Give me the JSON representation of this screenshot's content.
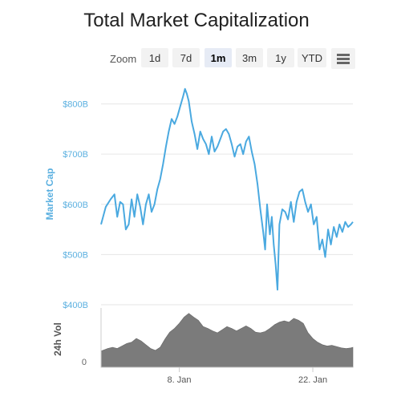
{
  "chart_data": {
    "type": "line",
    "title": "Total Market Capitalization",
    "ylabel": "Market Cap",
    "volume_label": "24h Vol",
    "volume_zero_label": "0",
    "y_ticks": [
      "$400B",
      "$500B",
      "$600B",
      "$700B",
      "$800B"
    ],
    "y_tick_values": [
      400,
      500,
      600,
      700,
      800
    ],
    "ylim": [
      400,
      860
    ],
    "x_ticks": [
      "8. Jan",
      "22. Jan"
    ],
    "x_tick_days": [
      8,
      22
    ],
    "xlim": [
      -0.2,
      26.2
    ],
    "grid": true,
    "legend": "none",
    "series": [
      {
        "x": [
          -0.2,
          0.3,
          0.8,
          1.2,
          1.5,
          1.8,
          2.1,
          2.4,
          2.7,
          3.0,
          3.3,
          3.6,
          3.9,
          4.2,
          4.5,
          4.8,
          5.1,
          5.4,
          5.7,
          6.0,
          6.3,
          6.6,
          6.9,
          7.2,
          7.5,
          7.8,
          8.1,
          8.4,
          8.6,
          8.8,
          9.0,
          9.3,
          9.6,
          9.9,
          10.2,
          10.5,
          10.8,
          11.1,
          11.4,
          11.7,
          12.0,
          12.3,
          12.6,
          12.9,
          13.2,
          13.5,
          13.8,
          14.1,
          14.4,
          14.7,
          15.0,
          15.3,
          15.6,
          15.9,
          16.2,
          16.5,
          16.8,
          17.0,
          17.2,
          17.5,
          17.7,
          17.9,
          18.1,
          18.3,
          18.5,
          18.8,
          19.1,
          19.4,
          19.7,
          20.0,
          20.3,
          20.6,
          20.9,
          21.2,
          21.5,
          21.8,
          22.1,
          22.4,
          22.7,
          23.0,
          23.3,
          23.6,
          23.9,
          24.2,
          24.5,
          24.8,
          25.1,
          25.4,
          25.7,
          26.0,
          26.2
        ],
        "y": [
          560,
          595,
          610,
          620,
          575,
          605,
          600,
          550,
          560,
          610,
          575,
          620,
          595,
          560,
          600,
          620,
          585,
          600,
          630,
          650,
          680,
          715,
          745,
          770,
          760,
          775,
          795,
          815,
          830,
          820,
          805,
          765,
          740,
          710,
          745,
          730,
          720,
          700,
          735,
          705,
          715,
          730,
          745,
          750,
          740,
          720,
          695,
          715,
          720,
          700,
          725,
          735,
          705,
          680,
          640,
          590,
          545,
          510,
          600,
          540,
          575,
          520,
          480,
          430,
          560,
          590,
          585,
          570,
          605,
          565,
          605,
          625,
          630,
          605,
          585,
          600,
          560,
          575,
          510,
          530,
          495,
          550,
          520,
          555,
          535,
          560,
          545,
          565,
          555,
          560,
          565
        ]
      }
    ],
    "volume": {
      "x": [
        -0.2,
        0.5,
        1.0,
        1.5,
        2.0,
        2.5,
        3.0,
        3.5,
        4.0,
        4.5,
        5.0,
        5.5,
        6.0,
        6.5,
        7.0,
        7.5,
        8.0,
        8.5,
        9.0,
        9.5,
        10.0,
        10.5,
        11.0,
        11.5,
        12.0,
        12.5,
        13.0,
        13.5,
        14.0,
        14.5,
        15.0,
        15.5,
        16.0,
        16.5,
        17.0,
        17.5,
        18.0,
        18.5,
        19.0,
        19.5,
        20.0,
        20.5,
        21.0,
        21.5,
        22.0,
        22.5,
        23.0,
        23.5,
        24.0,
        24.5,
        25.0,
        25.5,
        26.0,
        26.2
      ],
      "y": [
        26,
        30,
        32,
        30,
        34,
        38,
        40,
        46,
        42,
        36,
        30,
        27,
        32,
        45,
        56,
        62,
        70,
        80,
        86,
        80,
        75,
        65,
        62,
        58,
        55,
        60,
        65,
        62,
        58,
        62,
        66,
        62,
        56,
        55,
        57,
        62,
        68,
        72,
        74,
        72,
        78,
        75,
        70,
        55,
        46,
        40,
        36,
        34,
        35,
        33,
        31,
        30,
        31,
        32
      ]
    }
  },
  "toolbar": {
    "zoom_label": "Zoom",
    "buttons": [
      "1d",
      "7d",
      "1m",
      "3m",
      "1y",
      "YTD"
    ],
    "active": "1m",
    "menu_icon": "hamburger-menu-icon"
  },
  "colors": {
    "line": "#4aa9e0",
    "axis_text": "#5bb0e0",
    "volume_fill": "#7b7b7b",
    "grid": "#e6e6e6"
  }
}
